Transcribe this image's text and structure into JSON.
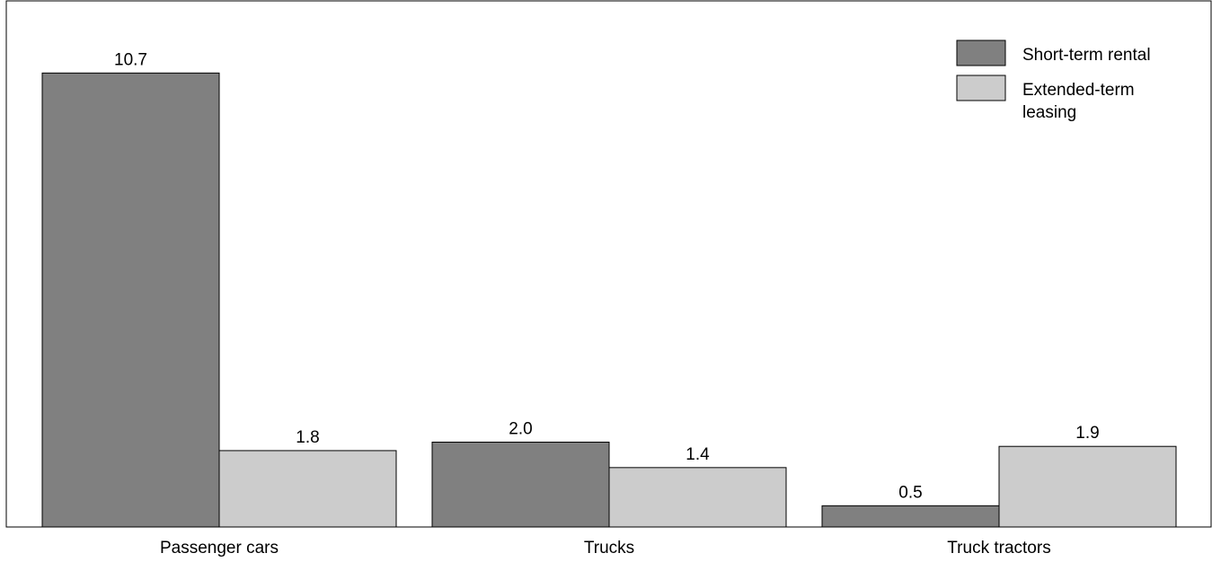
{
  "chart_data": {
    "type": "bar",
    "title": "",
    "xlabel": "",
    "ylabel": "",
    "categories": [
      "Passenger cars",
      "Trucks",
      "Truck tractors"
    ],
    "series": [
      {
        "name": "Short-term rental",
        "values": [
          10.7,
          2.0,
          0.5
        ],
        "labels": [
          "10.7",
          "2.0",
          "0.5"
        ],
        "color": "#808080"
      },
      {
        "name": "Extended-term leasing",
        "values": [
          1.8,
          1.4,
          1.9
        ],
        "labels": [
          "1.8",
          "1.4",
          "1.9"
        ],
        "color": "#cccccc"
      }
    ],
    "ylim": [
      0,
      12.4
    ],
    "grid": false,
    "legend_placement": "top-right",
    "legend_lines": [
      [
        "Short-term rental"
      ],
      [
        "Extended-term",
        "leasing"
      ]
    ]
  }
}
